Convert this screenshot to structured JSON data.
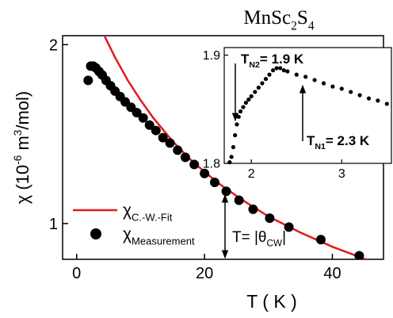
{
  "chart_data": [
    {
      "type": "scatter",
      "title": [
        "MnSc",
        {
          "text": "2",
          "pos": "sub"
        },
        "S",
        {
          "text": "4",
          "pos": "sub"
        }
      ],
      "x_label": "T ( K )",
      "y_label": [
        "χ (10",
        {
          "text": "-6",
          "pos": "sup"
        },
        " m",
        {
          "text": "3",
          "pos": "sup"
        },
        "/mol)"
      ],
      "xlim": [
        -2.2,
        48
      ],
      "ylim": [
        0.8,
        2.05
      ],
      "xticks": [
        0,
        20,
        40
      ],
      "yticks": [
        1,
        2
      ],
      "annotation": [
        "T= |θ",
        {
          "text": "CW",
          "pos": "sub"
        },
        "|"
      ],
      "series": [
        {
          "name": [
            "χ",
            {
              "text": "C.-W.-Fit",
              "pos": "sub"
            }
          ],
          "color": "#e31a1c",
          "style": "line",
          "x": [
            4.4,
            6,
            8,
            10,
            12,
            15,
            18,
            22,
            26,
            30,
            35,
            40,
            46
          ],
          "values": [
            2.045,
            1.929,
            1.8,
            1.69,
            1.59,
            1.46,
            1.35,
            1.23,
            1.13,
            1.04,
            0.95,
            0.87,
            0.79
          ]
        },
        {
          "name": [
            "χ",
            {
              "text": "Measurement",
              "pos": "sub"
            }
          ],
          "color": "#000000",
          "style": "marker",
          "x": [
            1.8,
            2.2,
            2.6,
            3.0,
            3.5,
            4.0,
            4.6,
            5.3,
            6.0,
            6.8,
            7.6,
            8.5,
            9.4,
            10.4,
            11.4,
            12.4,
            13.5,
            14.6,
            15.8,
            17.0,
            18.4,
            20.0,
            21.6,
            23.4,
            25.4,
            27.6,
            30.2,
            33.2,
            38.2,
            44.2
          ],
          "values": [
            1.8,
            1.88,
            1.88,
            1.87,
            1.85,
            1.83,
            1.8,
            1.77,
            1.74,
            1.71,
            1.68,
            1.65,
            1.62,
            1.59,
            1.55,
            1.52,
            1.48,
            1.45,
            1.41,
            1.37,
            1.33,
            1.28,
            1.23,
            1.18,
            1.13,
            1.08,
            1.03,
            0.98,
            0.91,
            0.82
          ]
        }
      ]
    },
    {
      "type": "scatter",
      "xlim": [
        1.7,
        3.55
      ],
      "ylim": [
        1.8,
        1.907
      ],
      "xticks": [
        2,
        3
      ],
      "yticks": [
        1.8,
        1.9
      ],
      "annotations": [
        [
          "T",
          {
            "text": "N2",
            "pos": "sub"
          },
          "= 1.9 K"
        ],
        [
          "T",
          {
            "text": "N1",
            "pos": "sub"
          },
          "= 2.3 K"
        ]
      ],
      "series": [
        {
          "color": "#000000",
          "style": "marker",
          "x": [
            1.76,
            1.78,
            1.8,
            1.82,
            1.84,
            1.86,
            1.88,
            1.91,
            1.94,
            1.97,
            2.0,
            2.04,
            2.08,
            2.12,
            2.16,
            2.2,
            2.24,
            2.28,
            2.32,
            2.36,
            2.4,
            2.5,
            2.6,
            2.7,
            2.8,
            2.9,
            3.0,
            3.1,
            3.2,
            3.3,
            3.4,
            3.5
          ],
          "values": [
            1.801,
            1.806,
            1.815,
            1.826,
            1.836,
            1.843,
            1.848,
            1.852,
            1.856,
            1.859,
            1.862,
            1.866,
            1.87,
            1.874,
            1.878,
            1.882,
            1.886,
            1.888,
            1.888,
            1.886,
            1.885,
            1.882,
            1.88,
            1.877,
            1.874,
            1.871,
            1.869,
            1.866,
            1.863,
            1.86,
            1.858,
            1.855
          ]
        }
      ]
    }
  ]
}
